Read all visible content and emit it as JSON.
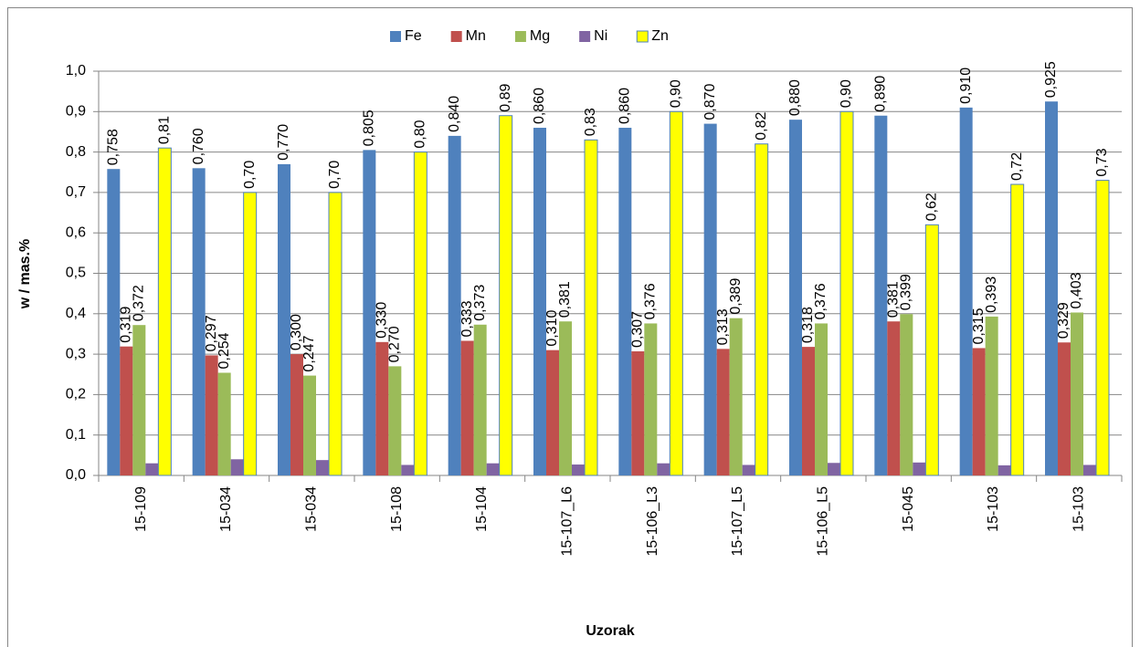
{
  "chart_data": {
    "type": "bar",
    "x_label": "Uzorak",
    "y_label": "w / mas.%",
    "categories": [
      "15-109",
      "15-034",
      "15-034",
      "15-108",
      "15-104",
      "15-107_L6",
      "15-106_L3",
      "15-107_L5",
      "15-106_L5",
      "15-045",
      "15-103",
      "15-103"
    ],
    "series": [
      {
        "name": "Fe",
        "color": "#4f81bd",
        "values": [
          0.758,
          0.76,
          0.77,
          0.805,
          0.84,
          0.86,
          0.86,
          0.87,
          0.88,
          0.89,
          0.91,
          0.925
        ],
        "value_labels": [
          "0,758",
          "0,760",
          "0,770",
          "0,805",
          "0,840",
          "0,860",
          "0,860",
          "0,870",
          "0,880",
          "0,890",
          "0,910",
          "0,925"
        ]
      },
      {
        "name": "Mn",
        "color": "#c0504d",
        "values": [
          0.319,
          0.297,
          0.3,
          0.33,
          0.333,
          0.31,
          0.307,
          0.313,
          0.318,
          0.381,
          0.315,
          0.329
        ],
        "value_labels": [
          "0,319",
          "0,297",
          "0,300",
          "0,330",
          "0,333",
          "0,310",
          "0,307",
          "0,313",
          "0,318",
          "0,381",
          "0,315",
          "0,329"
        ]
      },
      {
        "name": "Mg",
        "color": "#9bbb59",
        "values": [
          0.372,
          0.254,
          0.247,
          0.27,
          0.373,
          0.381,
          0.376,
          0.389,
          0.376,
          0.399,
          0.393,
          0.403
        ],
        "value_labels": [
          "0,372",
          "0,254",
          "0,247",
          "0,270",
          "0,373",
          "0,381",
          "0,376",
          "0,389",
          "0,376",
          "0,399",
          "0,393",
          "0,403"
        ]
      },
      {
        "name": "Ni",
        "color": "#8064a2",
        "values": [
          0.03,
          0.04,
          0.038,
          0.026,
          0.03,
          0.027,
          0.03,
          0.026,
          0.031,
          0.032,
          0.025,
          0.026
        ]
      },
      {
        "name": "Zn",
        "color": "#ffff00",
        "edgecolor": "#4f81bd",
        "values": [
          0.81,
          0.7,
          0.7,
          0.8,
          0.89,
          0.83,
          0.9,
          0.82,
          0.9,
          0.62,
          0.72,
          0.73
        ],
        "value_labels": [
          "0,81",
          "0,70",
          "0,70",
          "0,80",
          "0,89",
          "0,83",
          "0,90",
          "0,82",
          "0,90",
          "0,62",
          "0,72",
          "0,73"
        ]
      }
    ],
    "ylim": [
      0,
      1
    ],
    "yticks": [
      {
        "value": 0,
        "label": "0,0"
      },
      {
        "value": 0.1,
        "label": "0,1"
      },
      {
        "value": 0.2,
        "label": "0,2"
      },
      {
        "value": 0.3,
        "label": "0,3"
      },
      {
        "value": 0.4,
        "label": "0,4"
      },
      {
        "value": 0.5,
        "label": "0,5"
      },
      {
        "value": 0.6,
        "label": "0,6"
      },
      {
        "value": 0.7,
        "label": "0,7"
      },
      {
        "value": 0.8,
        "label": "0,8"
      },
      {
        "value": 0.9,
        "label": "0,9"
      },
      {
        "value": 1,
        "label": "1,0"
      }
    ],
    "grid": true,
    "legend": "top"
  }
}
